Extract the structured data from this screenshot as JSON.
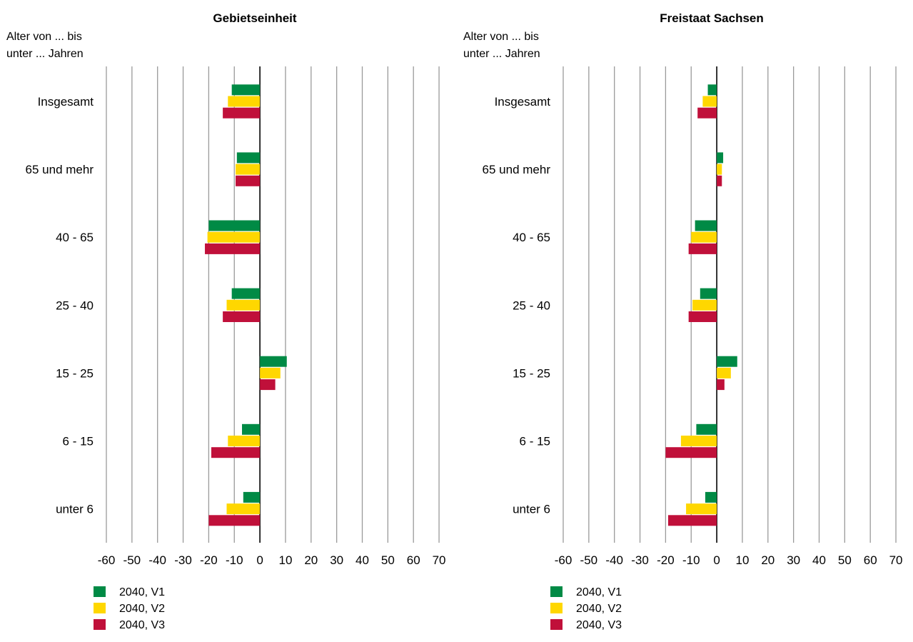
{
  "chart_data": [
    {
      "type": "bar",
      "orientation": "horizontal",
      "title": "Gebietseinheit",
      "ylabel_lines": [
        "Alter von ... bis",
        "unter ... Jahren"
      ],
      "categories": [
        "Insgesamt",
        "65 und mehr",
        "40 - 65",
        "25 - 40",
        "15 - 25",
        "6 - 15",
        "unter 6"
      ],
      "xlim": [
        -60,
        70
      ],
      "xticks": [
        -60,
        -50,
        -40,
        -30,
        -20,
        -10,
        0,
        10,
        20,
        30,
        40,
        50,
        60,
        70
      ],
      "grid": "vertical",
      "legend_position": "bottom-left",
      "series": [
        {
          "name": "2040, V1",
          "color": "#008a45",
          "values": [
            -11,
            -9,
            -20,
            -11,
            10.5,
            -7,
            -6.5
          ]
        },
        {
          "name": "2040, V2",
          "color": "#ffd700",
          "values": [
            -12.5,
            -9.5,
            -20.5,
            -13,
            8,
            -12.5,
            -13
          ]
        },
        {
          "name": "2040, V3",
          "color": "#c0103a",
          "values": [
            -14.5,
            -9.5,
            -21.5,
            -14.5,
            6,
            -19,
            -20
          ]
        }
      ]
    },
    {
      "type": "bar",
      "orientation": "horizontal",
      "title": "Freistaat Sachsen",
      "ylabel_lines": [
        "Alter von ... bis",
        "unter ... Jahren"
      ],
      "categories": [
        "Insgesamt",
        "65 und mehr",
        "40 - 65",
        "25 - 40",
        "15 - 25",
        "6 - 15",
        "unter 6"
      ],
      "xlim": [
        -60,
        70
      ],
      "xticks": [
        -60,
        -50,
        -40,
        -30,
        -20,
        -10,
        0,
        10,
        20,
        30,
        40,
        50,
        60,
        70
      ],
      "grid": "vertical",
      "legend_position": "bottom-left",
      "series": [
        {
          "name": "2040, V1",
          "color": "#008a45",
          "values": [
            -3.5,
            2.5,
            -8.5,
            -6.5,
            8,
            -8,
            -4.5
          ]
        },
        {
          "name": "2040, V2",
          "color": "#ffd700",
          "values": [
            -5.5,
            2,
            -10,
            -9.5,
            5.5,
            -14,
            -12
          ]
        },
        {
          "name": "2040, V3",
          "color": "#c0103a",
          "values": [
            -7.5,
            2,
            -11,
            -11,
            3,
            -20,
            -19
          ]
        }
      ]
    }
  ]
}
